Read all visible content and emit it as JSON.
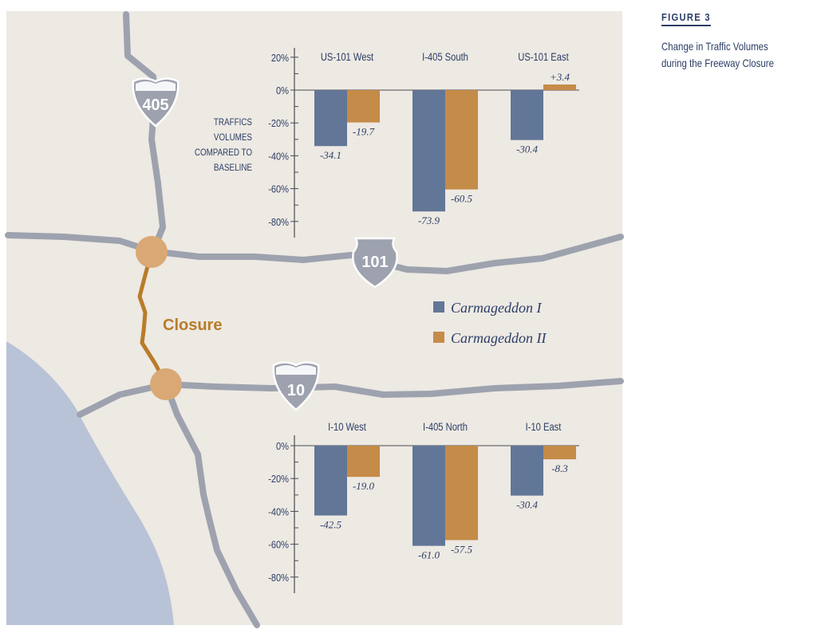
{
  "figure": {
    "label": "FIGURE 3",
    "caption": "Change in Traffic Volumes during the Freeway Closure"
  },
  "colors": {
    "map_background": "#ede9e3",
    "road": "#9da2ae",
    "water": "#b9c3d7",
    "closure": "#b97c2a",
    "node": "#d9a874",
    "series1": "#627697",
    "series2": "#c58b48",
    "text": "#2c3e66"
  },
  "map": {
    "closure_label": "Closure",
    "shields": [
      {
        "id": "i405",
        "kind": "interstate",
        "text": "405"
      },
      {
        "id": "us101",
        "kind": "us-route",
        "text": "101"
      },
      {
        "id": "i10",
        "kind": "interstate",
        "text": "10"
      }
    ]
  },
  "legend": {
    "items": [
      {
        "name": "Carmageddon I",
        "color": "#627697"
      },
      {
        "name": "Carmageddon II",
        "color": "#c58b48"
      }
    ]
  },
  "y_axis_title": [
    "TRAFFICS",
    "VOLUMES",
    "COMPARED TO",
    "BASELINE"
  ],
  "chart_data": [
    {
      "type": "bar",
      "categories": [
        "US-101 West",
        "I-405 South",
        "US-101 East"
      ],
      "series": [
        {
          "name": "Carmageddon I",
          "values": [
            -34.1,
            -73.9,
            -30.4
          ]
        },
        {
          "name": "Carmageddon II",
          "values": [
            -19.7,
            -60.5,
            3.4
          ]
        }
      ],
      "value_labels": [
        [
          "-34.1",
          "-73.9",
          "-30.4"
        ],
        [
          "-19.7",
          "-60.5",
          "+3.4"
        ]
      ],
      "yticks": [
        20,
        0,
        -20,
        -40,
        -60,
        -80
      ],
      "ytick_labels": [
        "20%",
        "0%",
        "-20%",
        "-40%",
        "-60%",
        "-80%"
      ],
      "ylim": [
        -90,
        20
      ],
      "ylabel": "TRAFFICS VOLUMES COMPARED TO BASELINE",
      "grid": false
    },
    {
      "type": "bar",
      "categories": [
        "I-10 West",
        "I-405 North",
        "I-10 East"
      ],
      "series": [
        {
          "name": "Carmageddon I",
          "values": [
            -42.5,
            -61.0,
            -30.4
          ]
        },
        {
          "name": "Carmageddon II",
          "values": [
            -19.0,
            -57.5,
            -8.3
          ]
        }
      ],
      "value_labels": [
        [
          "-42.5",
          "-61.0",
          "-30.4"
        ],
        [
          "-19.0",
          "-57.5",
          "-8.3"
        ]
      ],
      "yticks": [
        0,
        -20,
        -40,
        -60,
        -80
      ],
      "ytick_labels": [
        "0%",
        "-20%",
        "-40%",
        "-60%",
        "-80%"
      ],
      "ylim": [
        -90,
        0
      ],
      "grid": false
    }
  ]
}
